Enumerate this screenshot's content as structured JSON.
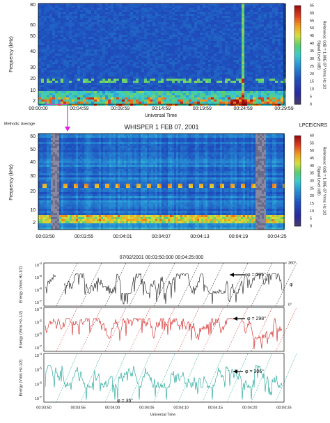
{
  "panel1": {
    "y_label": "Frequency (kHz)",
    "y_ticks": [
      "80",
      "60",
      "50",
      "40",
      "30",
      "20",
      "10",
      "2"
    ],
    "x_ticks": [
      "00:00:00",
      "00:04:59",
      "00:09:59",
      "00:14:59",
      "00:19:59",
      "00:24:59",
      "00:29:59"
    ],
    "x_label": "Universal Time",
    "colorbar_ticks": [
      "65",
      "60",
      "55",
      "50",
      "45",
      "40",
      "35",
      "30",
      "25",
      "20",
      "15",
      "10",
      "5",
      "0"
    ],
    "colorbar_label": "Signal Level (dB)",
    "colorbar_ref": "Reference: 0dB = 1.00E-07 Vrms Hz-1/2"
  },
  "methods": "Methods: Average",
  "credit": "LPCE/CNRS",
  "title": "WHISPER 1     FEB 07, 2001",
  "panel2": {
    "y_label": "Frequency (kHz)",
    "y_ticks": [
      "60",
      "50",
      "40",
      "30",
      "20",
      "10",
      "2"
    ],
    "x_ticks": [
      "00:03:50",
      "00:03:55",
      "00:04:01",
      "00:04:07",
      "00:04:13",
      "00:04:19",
      "00:04:25"
    ],
    "colorbar_ticks": [
      "60",
      "55",
      "50",
      "45",
      "40",
      "35",
      "30",
      "25",
      "20",
      "15",
      "10",
      "5",
      "0"
    ],
    "colorbar_label": "Signal Level (dB)",
    "colorbar_ref": "Reference: 0dB = 1.00E-07 Vrms Hz-1/2"
  },
  "panel3": {
    "title": "07/02/2001  00:03:50:000  00:04:25:000",
    "y_label": "Energy (Vrms Hz-1/2)",
    "y_ticks": [
      {
        "base": "10",
        "exp": "-4"
      },
      {
        "base": "10",
        "exp": "-5"
      },
      {
        "base": "10",
        "exp": "-6"
      },
      {
        "base": "10",
        "exp": "-7"
      }
    ],
    "phase_top": "360°",
    "phase_label": "φ",
    "phase_bottom": "0°",
    "annotations": [
      "φ = 295°",
      "φ = 298°",
      "φ = 306°",
      "φ = 35°"
    ],
    "x_ticks": [
      "00:03:50",
      "00:03:55",
      "00:04:00",
      "00:04:05",
      "00:04:10",
      "00:04:15",
      "00:04:20",
      "00:04:25"
    ],
    "x_label": "Universal Time"
  }
}
